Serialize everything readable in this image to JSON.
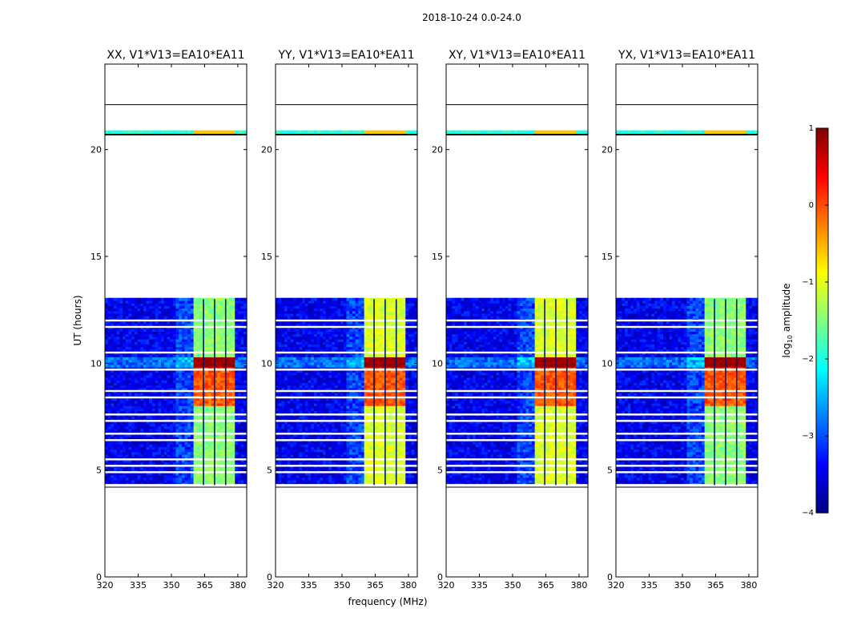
{
  "figure": {
    "suptitle": "2018-10-24 0.0-24.0"
  },
  "chart_data": {
    "type": "heatmap",
    "ylabel": "UT (hours)",
    "xlabel": "frequency (MHz)",
    "xlim": [
      320,
      384
    ],
    "ylim": [
      0,
      24
    ],
    "x_ticks": [
      320,
      335,
      350,
      365,
      380
    ],
    "y_ticks": [
      0,
      5,
      10,
      15,
      20
    ],
    "data_time_range": [
      4.3,
      13.0
    ],
    "extra_time_range": [
      20.7,
      20.9
    ],
    "hot_band_mhz": [
      360,
      379
    ],
    "band_line_positions_mhz": [
      364.5,
      369.5,
      374.5
    ],
    "hot_time_range": [
      9.7,
      10.2
    ],
    "gap_times": [
      4.3,
      4.9,
      5.2,
      5.5,
      6.4,
      6.7,
      7.3,
      7.6,
      8.4,
      8.7,
      9.7,
      10.5,
      11.7,
      12.0
    ],
    "horizontal_lines": [
      4.2,
      20.7,
      22.1
    ],
    "panels": [
      {
        "title": "XX, V1*V13=EA10*EA11",
        "band_level": "medium"
      },
      {
        "title": "YY, V1*V13=EA10*EA11",
        "band_level": "high"
      },
      {
        "title": "XY, V1*V13=EA10*EA11",
        "band_level": "high"
      },
      {
        "title": "YX, V1*V13=EA10*EA11",
        "band_level": "medium"
      }
    ],
    "colorbar": {
      "label_prefix": "log",
      "label_sub": "10",
      "label_suffix": " amplitude",
      "range": [
        -4,
        1
      ],
      "ticks": [
        1,
        0,
        -1,
        -2,
        -3,
        -4
      ],
      "colormap": "jet"
    }
  }
}
